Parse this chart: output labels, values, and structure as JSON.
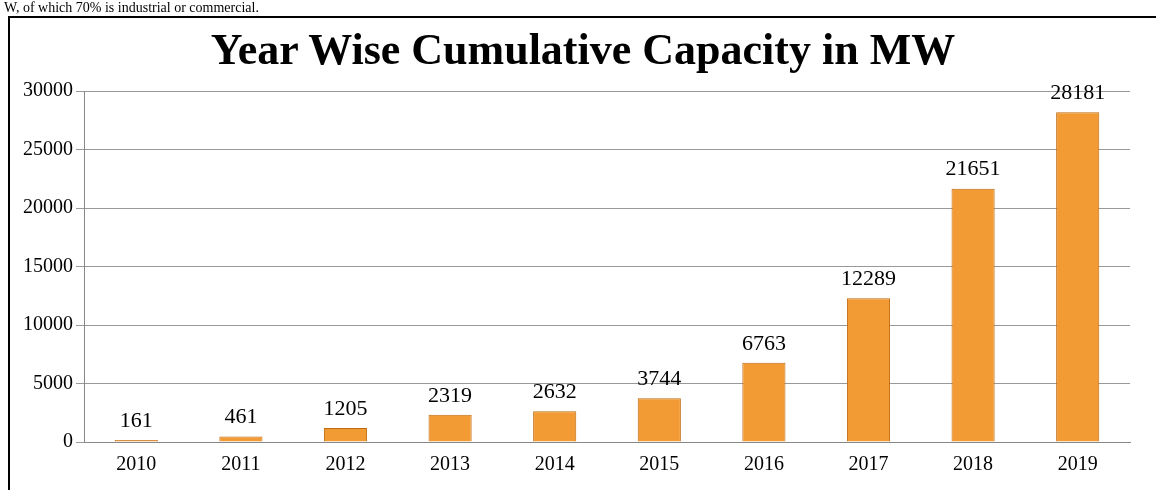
{
  "chart_data": {
    "type": "bar",
    "title": "Year Wise Cumulative Capacity in MW",
    "categories": [
      "2010",
      "2011",
      "2012",
      "2013",
      "2014",
      "2015",
      "2016",
      "2017",
      "2018",
      "2019"
    ],
    "values": [
      161,
      461,
      1205,
      2319,
      2632,
      3744,
      6763,
      12289,
      21651,
      28181
    ],
    "color": "#f29a33",
    "ylim": [
      0,
      30000
    ],
    "yticks": [
      0,
      5000,
      10000,
      15000,
      20000,
      25000,
      30000
    ],
    "grid": "y",
    "data_labels": true,
    "annotations": [
      "W, of which 70% is industrial or commercial."
    ]
  }
}
